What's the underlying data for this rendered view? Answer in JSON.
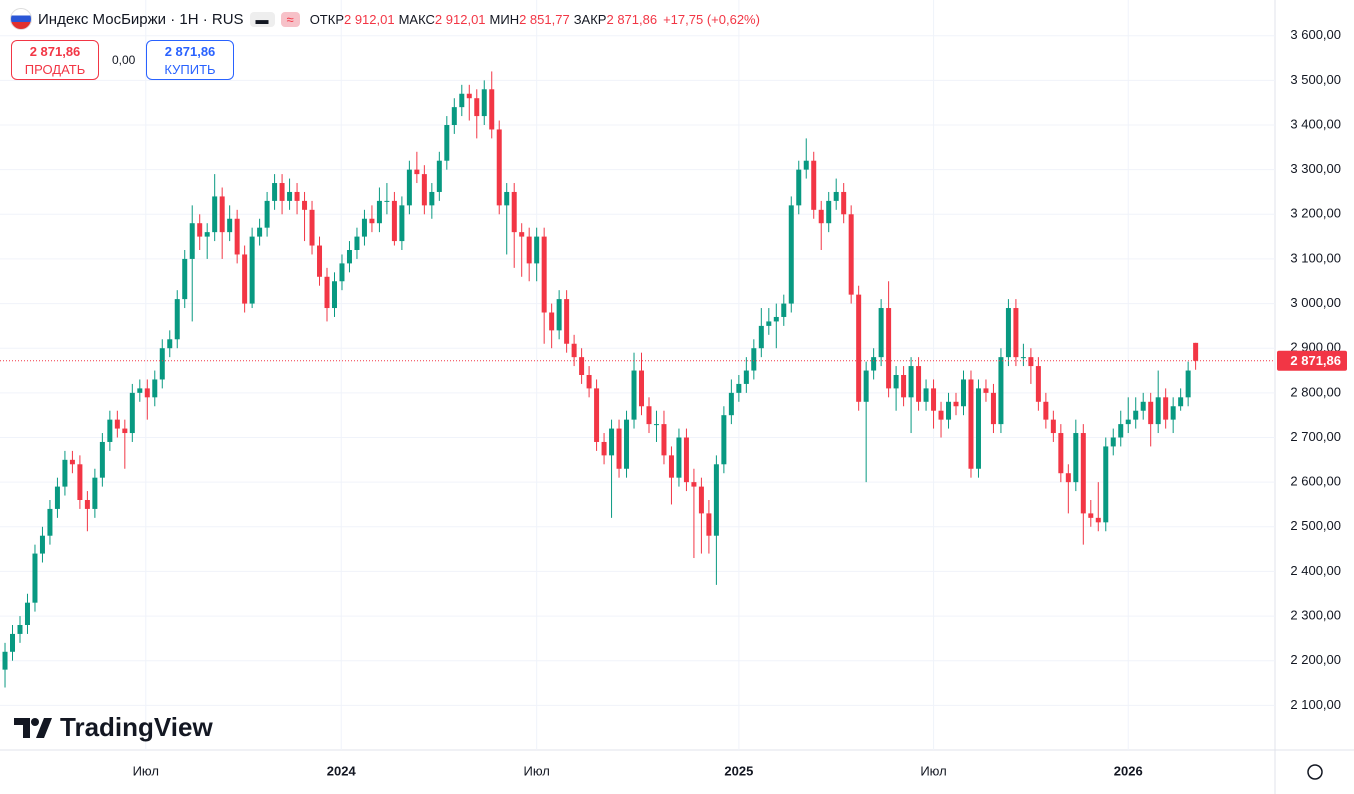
{
  "header": {
    "symbol": "Индекс МосБиржи · 1Н · RUS",
    "icon_approx": "≈",
    "fields": [
      {
        "label": "ОТКР",
        "value": "2 912,01"
      },
      {
        "label": "МАКС",
        "value": "2 912,01"
      },
      {
        "label": "МИН",
        "value": "2 851,77"
      },
      {
        "label": "ЗАКР",
        "value": "2 871,86"
      }
    ],
    "change": "+17,75 (+0,62%)",
    "sell": {
      "price": "2 871,86",
      "label": "ПРОДАТЬ"
    },
    "spread": "0,00",
    "buy": {
      "price": "2 871,86",
      "label": "КУПИТЬ"
    },
    "logo": "TradingView"
  },
  "chart_data": {
    "type": "candlestick",
    "up_color": "#089981",
    "down_color": "#f23645",
    "grid": true,
    "xlim": [
      -0.67,
      169.6
    ],
    "xticks": [
      {
        "value": 18.8,
        "label": "Июл"
      },
      {
        "value": 44.9,
        "label": "2024"
      },
      {
        "value": 71.0,
        "label": "Июл"
      },
      {
        "value": 98.0,
        "label": "2025"
      },
      {
        "value": 124.0,
        "label": "Июл"
      },
      {
        "value": 150.0,
        "label": "2026"
      }
    ],
    "ylim": [
      2000,
      3680
    ],
    "yticks": [
      {
        "value": 2100,
        "label": "2 100,00"
      },
      {
        "value": 2200,
        "label": "2 200,00"
      },
      {
        "value": 2300,
        "label": "2 300,00"
      },
      {
        "value": 2400,
        "label": "2 400,00"
      },
      {
        "value": 2500,
        "label": "2 500,00"
      },
      {
        "value": 2600,
        "label": "2 600,00"
      },
      {
        "value": 2700,
        "label": "2 700,00"
      },
      {
        "value": 2800,
        "label": "2 800,00"
      },
      {
        "value": 2900,
        "label": "2 900,00"
      },
      {
        "value": 3000,
        "label": "3 000,00"
      },
      {
        "value": 3100,
        "label": "3 100,00"
      },
      {
        "value": 3200,
        "label": "3 200,00"
      },
      {
        "value": 3300,
        "label": "3 300,00"
      },
      {
        "value": 3400,
        "label": "3 400,00"
      },
      {
        "value": 3500,
        "label": "3 500,00"
      },
      {
        "value": 3600,
        "label": "3 600,00"
      }
    ],
    "last_price": {
      "value": 2871.86,
      "label": "2 871,86"
    },
    "open": [
      2180,
      2220,
      2260,
      2280,
      2330,
      2440,
      2480,
      2540,
      2590,
      2650,
      2640,
      2560,
      2540,
      2610,
      2690,
      2740,
      2720,
      2710,
      2800,
      2810,
      2790,
      2830,
      2900,
      2920,
      3010,
      3100,
      3180,
      3150,
      3160,
      3240,
      3160,
      3190,
      3110,
      3000,
      3150,
      3170,
      3230,
      3270,
      3230,
      3250,
      3230,
      3210,
      3130,
      3060,
      2990,
      3050,
      3090,
      3120,
      3150,
      3190,
      3180,
      3230,
      3230,
      3140,
      3220,
      3300,
      3290,
      3220,
      3250,
      3320,
      3400,
      3440,
      3470,
      3460,
      3420,
      3480,
      3390,
      3220,
      3250,
      3160,
      3150,
      3090,
      3150,
      2980,
      2940,
      3010,
      2910,
      2880,
      2840,
      2810,
      2690,
      2660,
      2720,
      2630,
      2740,
      2850,
      2770,
      2730,
      2730,
      2660,
      2610,
      2700,
      2600,
      2590,
      2530,
      2480,
      2640,
      2750,
      2800,
      2820,
      2850,
      2900,
      2950,
      2960,
      2970,
      3000,
      3220,
      3300,
      3320,
      3210,
      3180,
      3230,
      3250,
      3200,
      3020,
      2780,
      2850,
      2880,
      2990,
      2810,
      2840,
      2790,
      2860,
      2780,
      2810,
      2760,
      2740,
      2780,
      2770,
      2830,
      2630,
      2810,
      2800,
      2730,
      2880,
      2990,
      2880,
      2880,
      2860,
      2780,
      2740,
      2710,
      2620,
      2600,
      2710,
      2530,
      2520,
      2510,
      2680,
      2700,
      2730,
      2740,
      2760,
      2780,
      2730,
      2790,
      2740,
      2770,
      2790,
      2912.01
    ],
    "high": [
      2240,
      2280,
      2300,
      2350,
      2460,
      2500,
      2560,
      2610,
      2670,
      2670,
      2660,
      2580,
      2630,
      2710,
      2760,
      2760,
      2740,
      2820,
      2830,
      2830,
      2850,
      2920,
      2940,
      3030,
      3120,
      3220,
      3200,
      3180,
      3290,
      3260,
      3220,
      3210,
      3130,
      3170,
      3190,
      3250,
      3290,
      3290,
      3280,
      3270,
      3250,
      3230,
      3150,
      3080,
      3070,
      3110,
      3140,
      3170,
      3210,
      3220,
      3260,
      3270,
      3250,
      3240,
      3320,
      3340,
      3310,
      3270,
      3340,
      3420,
      3460,
      3490,
      3490,
      3480,
      3500,
      3520,
      3410,
      3270,
      3270,
      3180,
      3170,
      3170,
      3170,
      3000,
      3030,
      3030,
      2930,
      2900,
      2860,
      2830,
      2710,
      2740,
      2740,
      2760,
      2890,
      2890,
      2790,
      2760,
      2760,
      2680,
      2720,
      2720,
      2630,
      2610,
      2560,
      2660,
      2770,
      2830,
      2840,
      2880,
      2920,
      2990,
      2990,
      3000,
      3020,
      3240,
      3320,
      3370,
      3340,
      3230,
      3250,
      3280,
      3270,
      3220,
      3040,
      2870,
      2900,
      3010,
      3050,
      2860,
      2860,
      2880,
      2880,
      2830,
      2830,
      2780,
      2800,
      2800,
      2850,
      2850,
      2830,
      2830,
      2820,
      2900,
      3010,
      3010,
      2910,
      2900,
      2880,
      2800,
      2760,
      2730,
      2640,
      2740,
      2730,
      2560,
      2600,
      2700,
      2720,
      2760,
      2790,
      2790,
      2800,
      2800,
      2850,
      2810,
      2790,
      2810,
      2870,
      2912.01
    ],
    "low": [
      2140,
      2200,
      2240,
      2260,
      2310,
      2420,
      2460,
      2520,
      2570,
      2620,
      2540,
      2490,
      2520,
      2590,
      2670,
      2700,
      2630,
      2690,
      2780,
      2740,
      2770,
      2810,
      2880,
      2900,
      2990,
      2960,
      3120,
      3100,
      3140,
      3100,
      3140,
      3090,
      2980,
      2990,
      3130,
      3150,
      3210,
      3200,
      3210,
      3200,
      3140,
      3110,
      3040,
      2960,
      2970,
      3030,
      3070,
      3100,
      3130,
      3160,
      3160,
      3200,
      3130,
      3120,
      3200,
      3270,
      3200,
      3190,
      3230,
      3300,
      3380,
      3420,
      3410,
      3370,
      3400,
      3370,
      3200,
      3110,
      3080,
      3060,
      3050,
      3050,
      2910,
      2900,
      2920,
      2890,
      2860,
      2820,
      2790,
      2670,
      2640,
      2520,
      2610,
      2610,
      2720,
      2750,
      2710,
      2690,
      2640,
      2550,
      2590,
      2580,
      2430,
      2440,
      2440,
      2370,
      2620,
      2730,
      2780,
      2800,
      2830,
      2880,
      2930,
      2900,
      2950,
      2980,
      3200,
      3280,
      3190,
      3120,
      3160,
      3210,
      3180,
      3000,
      2760,
      2600,
      2830,
      2860,
      2790,
      2760,
      2770,
      2710,
      2760,
      2760,
      2720,
      2700,
      2720,
      2750,
      2750,
      2610,
      2610,
      2780,
      2710,
      2710,
      2860,
      2860,
      2860,
      2820,
      2760,
      2720,
      2690,
      2600,
      2530,
      2580,
      2460,
      2500,
      2490,
      2490,
      2660,
      2680,
      2710,
      2720,
      2740,
      2680,
      2710,
      2720,
      2710,
      2760,
      2770,
      2851.77
    ],
    "close": [
      2220,
      2260,
      2280,
      2330,
      2440,
      2480,
      2540,
      2590,
      2650,
      2640,
      2560,
      2540,
      2610,
      2690,
      2740,
      2720,
      2710,
      2800,
      2810,
      2790,
      2830,
      2900,
      2920,
      3010,
      3100,
      3180,
      3150,
      3160,
      3240,
      3160,
      3190,
      3110,
      3000,
      3150,
      3170,
      3230,
      3270,
      3230,
      3250,
      3230,
      3210,
      3130,
      3060,
      2990,
      3050,
      3090,
      3120,
      3150,
      3190,
      3180,
      3230,
      3230,
      3140,
      3220,
      3300,
      3290,
      3220,
      3250,
      3320,
      3400,
      3440,
      3470,
      3460,
      3420,
      3480,
      3390,
      3220,
      3250,
      3160,
      3150,
      3090,
      3150,
      2980,
      2940,
      3010,
      2910,
      2880,
      2840,
      2810,
      2690,
      2660,
      2720,
      2630,
      2740,
      2850,
      2770,
      2730,
      2730,
      2660,
      2610,
      2700,
      2600,
      2590,
      2530,
      2480,
      2640,
      2750,
      2800,
      2820,
      2850,
      2900,
      2950,
      2960,
      2970,
      3000,
      3220,
      3300,
      3320,
      3210,
      3180,
      3230,
      3250,
      3200,
      3020,
      2780,
      2850,
      2880,
      2990,
      2810,
      2840,
      2790,
      2860,
      2780,
      2810,
      2760,
      2740,
      2780,
      2770,
      2830,
      2630,
      2810,
      2800,
      2730,
      2880,
      2990,
      2880,
      2880,
      2860,
      2780,
      2740,
      2710,
      2620,
      2600,
      2710,
      2530,
      2520,
      2510,
      2680,
      2700,
      2730,
      2740,
      2760,
      2780,
      2730,
      2790,
      2740,
      2770,
      2790,
      2850,
      2871.86
    ]
  }
}
